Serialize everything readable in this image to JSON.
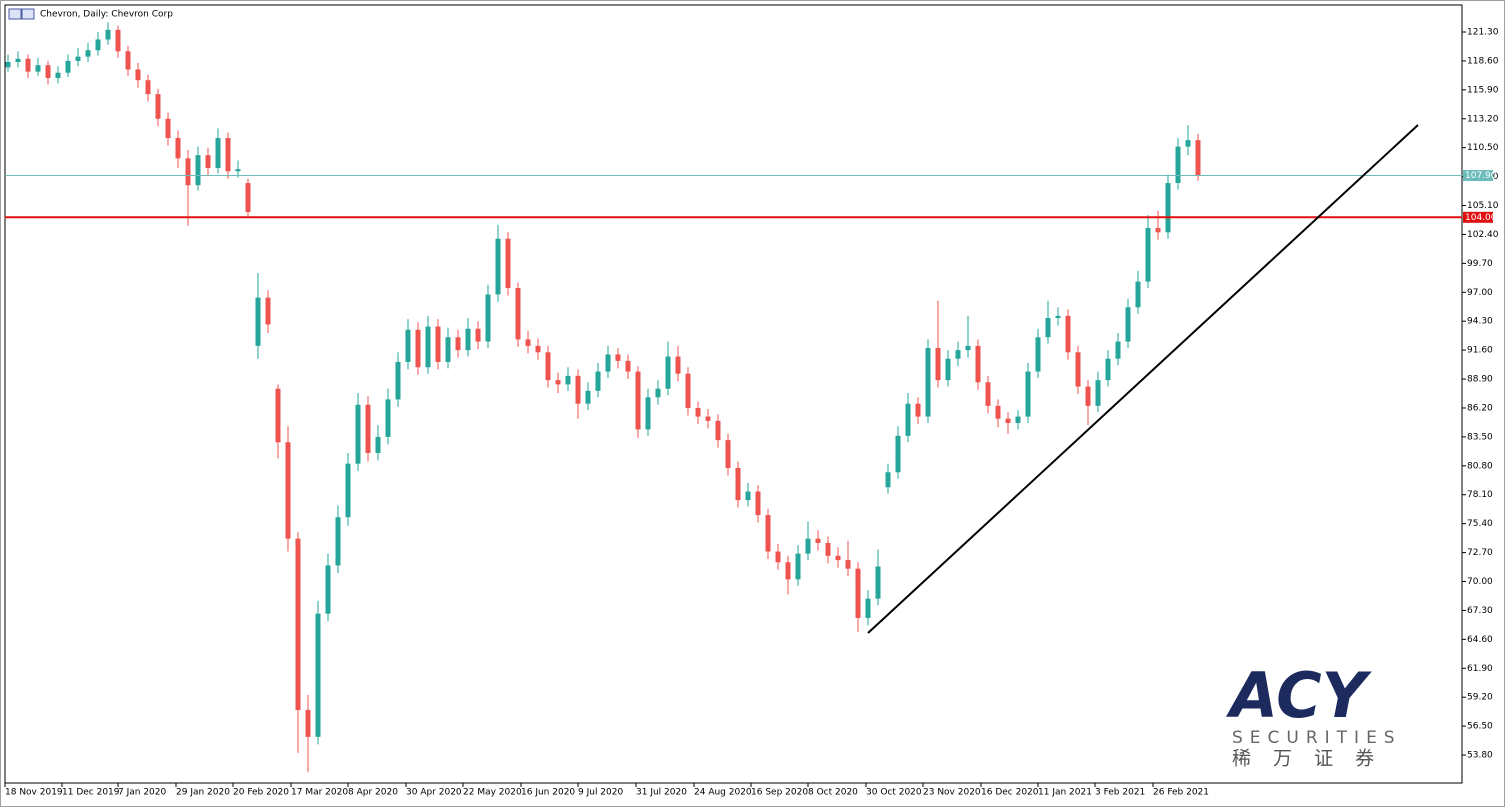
{
  "chart_data": {
    "type": "candlestick",
    "title": "Chevron, Daily:  Chevron Corp",
    "up_color": "#26a69a",
    "down_color": "#ef5350",
    "open": [
      118.0,
      118.5,
      118.8,
      117.6,
      118.2,
      117.0,
      117.5,
      118.6,
      119.0,
      119.6,
      120.6,
      121.5,
      119.5,
      117.8,
      116.8,
      115.5,
      113.2,
      111.4,
      109.5,
      107.0,
      109.8,
      108.6,
      111.4,
      108.3,
      107.2,
      92.0,
      96.5,
      88.0,
      83.0,
      74.0,
      58.0,
      55.5,
      67.0,
      71.5,
      76.0,
      81.0,
      86.5,
      82.0,
      83.5,
      87.0,
      90.5,
      93.5,
      90.0,
      93.8,
      90.5,
      92.8,
      91.6,
      93.6,
      92.4,
      96.8,
      102.0,
      97.4,
      92.6,
      92.0,
      91.4,
      88.8,
      88.4,
      89.2,
      86.6,
      87.8,
      89.6,
      91.2,
      90.6,
      89.6,
      84.2,
      87.2,
      88.0,
      91.0,
      89.4,
      86.2,
      85.4,
      85.0,
      83.2,
      80.6,
      77.6,
      78.4,
      76.2,
      72.8,
      71.8,
      70.2,
      72.6,
      74.0,
      73.6,
      72.4,
      72.0,
      71.2,
      66.6,
      68.4,
      78.8,
      80.2,
      83.6,
      86.6,
      85.4,
      91.8,
      88.8,
      90.8,
      91.6,
      92.0,
      88.6,
      86.4,
      85.2,
      84.8,
      85.4,
      89.6,
      92.8,
      94.6,
      94.8,
      91.4,
      88.2,
      86.4,
      88.8,
      90.8,
      92.4,
      95.6,
      98.0,
      103.0,
      102.6,
      107.2,
      110.6,
      111.2
    ],
    "high": [
      119.2,
      119.5,
      119.2,
      118.9,
      118.6,
      118.1,
      119.2,
      119.8,
      120.3,
      121.3,
      122.2,
      121.9,
      120.0,
      118.4,
      117.3,
      116.0,
      113.8,
      112.1,
      110.3,
      110.6,
      110.5,
      112.3,
      111.9,
      109.3,
      107.6,
      98.8,
      97.2,
      88.4,
      84.5,
      74.6,
      59.4,
      68.2,
      72.6,
      77.1,
      82.0,
      87.6,
      87.3,
      84.6,
      88.0,
      91.4,
      94.5,
      94.2,
      94.8,
      94.5,
      93.7,
      93.5,
      94.6,
      94.3,
      97.7,
      103.3,
      102.6,
      97.9,
      93.4,
      92.7,
      92.0,
      89.5,
      90.0,
      89.8,
      88.6,
      90.4,
      92.0,
      91.8,
      91.2,
      90.1,
      88.0,
      88.8,
      92.4,
      92.0,
      90.0,
      86.8,
      86.1,
      85.6,
      83.8,
      81.2,
      79.2,
      79.0,
      76.8,
      73.5,
      72.4,
      73.4,
      75.6,
      74.8,
      74.2,
      73.2,
      73.8,
      71.8,
      69.2,
      73.0,
      81.0,
      84.5,
      87.6,
      87.2,
      92.6,
      96.2,
      91.6,
      92.4,
      94.8,
      92.6,
      89.2,
      87.0,
      85.8,
      86.0,
      90.4,
      93.6,
      96.2,
      95.6,
      95.4,
      92.0,
      88.8,
      89.6,
      91.6,
      93.2,
      96.4,
      99.0,
      104.2,
      104.6,
      108.0,
      111.4,
      112.6,
      111.8
    ],
    "low": [
      117.6,
      118.0,
      117.0,
      117.2,
      116.4,
      116.5,
      117.1,
      118.1,
      118.5,
      119.1,
      120.1,
      118.9,
      117.2,
      116.1,
      114.8,
      112.5,
      110.7,
      108.6,
      103.2,
      106.5,
      107.9,
      108.1,
      107.6,
      107.7,
      104.0,
      90.8,
      93.2,
      81.5,
      72.8,
      54.0,
      52.2,
      54.8,
      66.3,
      70.8,
      75.2,
      80.3,
      81.2,
      81.3,
      82.8,
      86.3,
      89.8,
      89.3,
      89.4,
      89.8,
      89.9,
      90.9,
      91.0,
      91.7,
      91.8,
      96.1,
      96.7,
      91.9,
      91.3,
      90.7,
      88.1,
      87.6,
      87.8,
      85.2,
      86.0,
      87.2,
      89.0,
      89.9,
      88.9,
      83.4,
      83.6,
      86.5,
      87.4,
      88.7,
      85.5,
      84.7,
      84.3,
      82.5,
      79.9,
      76.9,
      77.0,
      75.5,
      72.1,
      71.1,
      68.8,
      69.6,
      72.0,
      72.9,
      71.7,
      71.3,
      70.5,
      65.3,
      65.9,
      67.8,
      78.2,
      79.6,
      83.0,
      84.7,
      84.8,
      88.1,
      88.2,
      90.1,
      90.9,
      87.9,
      85.7,
      84.4,
      83.8,
      84.2,
      84.8,
      89.0,
      92.2,
      93.9,
      90.7,
      87.5,
      84.6,
      85.8,
      88.2,
      90.2,
      91.8,
      95.0,
      97.4,
      101.9,
      102.0,
      106.6,
      109.8,
      107.4
    ],
    "close": [
      118.5,
      118.8,
      117.6,
      118.2,
      117.0,
      117.5,
      118.6,
      119.0,
      119.6,
      120.6,
      121.5,
      119.5,
      117.8,
      116.8,
      115.5,
      113.2,
      111.4,
      109.5,
      107.0,
      109.8,
      108.6,
      111.4,
      108.3,
      108.5,
      104.5,
      96.5,
      94.0,
      83.0,
      74.0,
      58.0,
      55.5,
      67.0,
      71.5,
      76.0,
      81.0,
      86.5,
      82.0,
      83.5,
      87.0,
      90.5,
      93.5,
      90.0,
      93.8,
      90.5,
      92.8,
      91.6,
      93.6,
      92.4,
      96.8,
      102.0,
      97.4,
      92.6,
      92.0,
      91.4,
      88.8,
      88.4,
      89.2,
      86.6,
      87.8,
      89.6,
      91.2,
      90.6,
      89.6,
      84.2,
      87.2,
      88.0,
      91.0,
      89.4,
      86.2,
      85.4,
      85.0,
      83.2,
      80.6,
      77.6,
      78.4,
      76.2,
      72.8,
      71.8,
      70.2,
      72.6,
      74.0,
      73.6,
      72.4,
      72.0,
      71.2,
      66.6,
      68.4,
      71.4,
      80.2,
      83.6,
      86.6,
      85.4,
      91.8,
      88.8,
      90.8,
      91.6,
      92.0,
      88.6,
      86.4,
      85.2,
      84.8,
      85.4,
      89.6,
      92.8,
      94.6,
      94.8,
      91.4,
      88.2,
      86.4,
      88.8,
      90.8,
      92.4,
      95.6,
      98.0,
      103.0,
      102.6,
      107.2,
      110.6,
      111.2,
      107.9
    ],
    "xlim": [
      -0.3,
      145.4
    ],
    "xticks": [
      {
        "value": -0.3,
        "label": "18 Nov 2019"
      },
      {
        "value": 5.4,
        "label": "11 Dec 2019"
      },
      {
        "value": 11.0,
        "label": "7 Jan 2020"
      },
      {
        "value": 16.8,
        "label": "29 Jan 2020"
      },
      {
        "value": 22.5,
        "label": "20 Feb 2020"
      },
      {
        "value": 28.3,
        "label": "17 Mar 2020"
      },
      {
        "value": 34.0,
        "label": "8 Apr 2020"
      },
      {
        "value": 39.8,
        "label": "30 Apr 2020"
      },
      {
        "value": 45.5,
        "label": "22 May 2020"
      },
      {
        "value": 51.3,
        "label": "16 Jun 2020"
      },
      {
        "value": 57.0,
        "label": "9 Jul 2020"
      },
      {
        "value": 62.8,
        "label": "31 Jul 2020"
      },
      {
        "value": 68.6,
        "label": "24 Aug 2020"
      },
      {
        "value": 74.3,
        "label": "16 Sep 2020"
      },
      {
        "value": 80.0,
        "label": "8 Oct 2020"
      },
      {
        "value": 85.8,
        "label": "30 Oct 2020"
      },
      {
        "value": 91.5,
        "label": "23 Nov 2020"
      },
      {
        "value": 97.3,
        "label": "16 Dec 2020"
      },
      {
        "value": 103.0,
        "label": "11 Jan 2021"
      },
      {
        "value": 108.7,
        "label": "3 Feb 2021"
      },
      {
        "value": 114.5,
        "label": "26 Feb 2021"
      }
    ],
    "ylim": [
      51.19,
      123.82
    ],
    "yticks": [
      {
        "value": 53.8,
        "label": "53.80"
      },
      {
        "value": 56.5,
        "label": "56.50"
      },
      {
        "value": 59.2,
        "label": "59.20"
      },
      {
        "value": 61.9,
        "label": "61.90"
      },
      {
        "value": 64.6,
        "label": "64.60"
      },
      {
        "value": 67.3,
        "label": "67.30"
      },
      {
        "value": 70.0,
        "label": "70.00"
      },
      {
        "value": 72.7,
        "label": "72.70"
      },
      {
        "value": 75.4,
        "label": "75.40"
      },
      {
        "value": 78.1,
        "label": "78.10"
      },
      {
        "value": 80.8,
        "label": "80.80"
      },
      {
        "value": 83.5,
        "label": "83.50"
      },
      {
        "value": 86.2,
        "label": "86.20"
      },
      {
        "value": 88.9,
        "label": "88.90"
      },
      {
        "value": 91.6,
        "label": "91.60"
      },
      {
        "value": 94.3,
        "label": "94.30"
      },
      {
        "value": 97.0,
        "label": "97.00"
      },
      {
        "value": 99.7,
        "label": "99.70"
      },
      {
        "value": 102.4,
        "label": "102.40"
      },
      {
        "value": 105.1,
        "label": "105.10"
      },
      {
        "value": 107.8,
        "label": "107.80"
      },
      {
        "value": 110.5,
        "label": "110.50"
      },
      {
        "value": 113.2,
        "label": "113.20"
      },
      {
        "value": 115.9,
        "label": "115.90"
      },
      {
        "value": 118.6,
        "label": "118.60"
      },
      {
        "value": 121.3,
        "label": "121.30"
      }
    ],
    "hlines": [
      {
        "value": 107.9,
        "label": "107.90",
        "color": "#6cbcbc"
      },
      {
        "value": 104.0,
        "label": "104.00",
        "color": "#e01010"
      }
    ],
    "trendline": {
      "x": [
        86.0,
        141.0
      ],
      "y": [
        65.19,
        112.62
      ],
      "color": "#000000"
    }
  },
  "logo": {
    "name": "ACY",
    "subtitle": "SECURITIES",
    "chinese": "稀 万 证 券"
  }
}
